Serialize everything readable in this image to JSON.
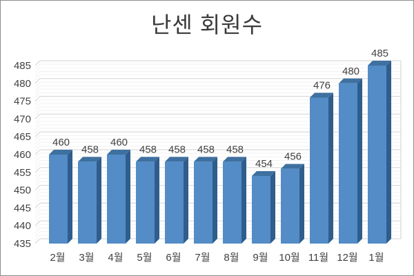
{
  "chart_data": {
    "type": "bar",
    "style": "3d-column",
    "title": "난센 회원수",
    "categories": [
      "2월",
      "3월",
      "4월",
      "5월",
      "6월",
      "7월",
      "8월",
      "9월",
      "10월",
      "11월",
      "12월",
      "1월"
    ],
    "values": [
      460,
      458,
      460,
      458,
      458,
      458,
      458,
      454,
      456,
      476,
      480,
      485
    ],
    "data_labels_shown": true,
    "xlabel": "",
    "ylabel": "",
    "ylim": [
      435,
      485
    ],
    "ytick_step": 5,
    "yticks": [
      "435",
      "440",
      "445",
      "450",
      "455",
      "460",
      "465",
      "470",
      "475",
      "480",
      "485"
    ],
    "grid": "horizontal major + minor, 3d back wall",
    "legend": "none",
    "colors": {
      "bar_front": "#538CC6",
      "bar_side": "#2F5D8C",
      "bar_top": "#3E70A0",
      "major_gridline": "#D9D9D9",
      "minor_gridline": "#F2F2F2",
      "minor_diag_gridline": "#EFEFEF",
      "axis_text": "#404040",
      "title_text": "#3A3A3A",
      "background": "#FFFFFF"
    }
  }
}
